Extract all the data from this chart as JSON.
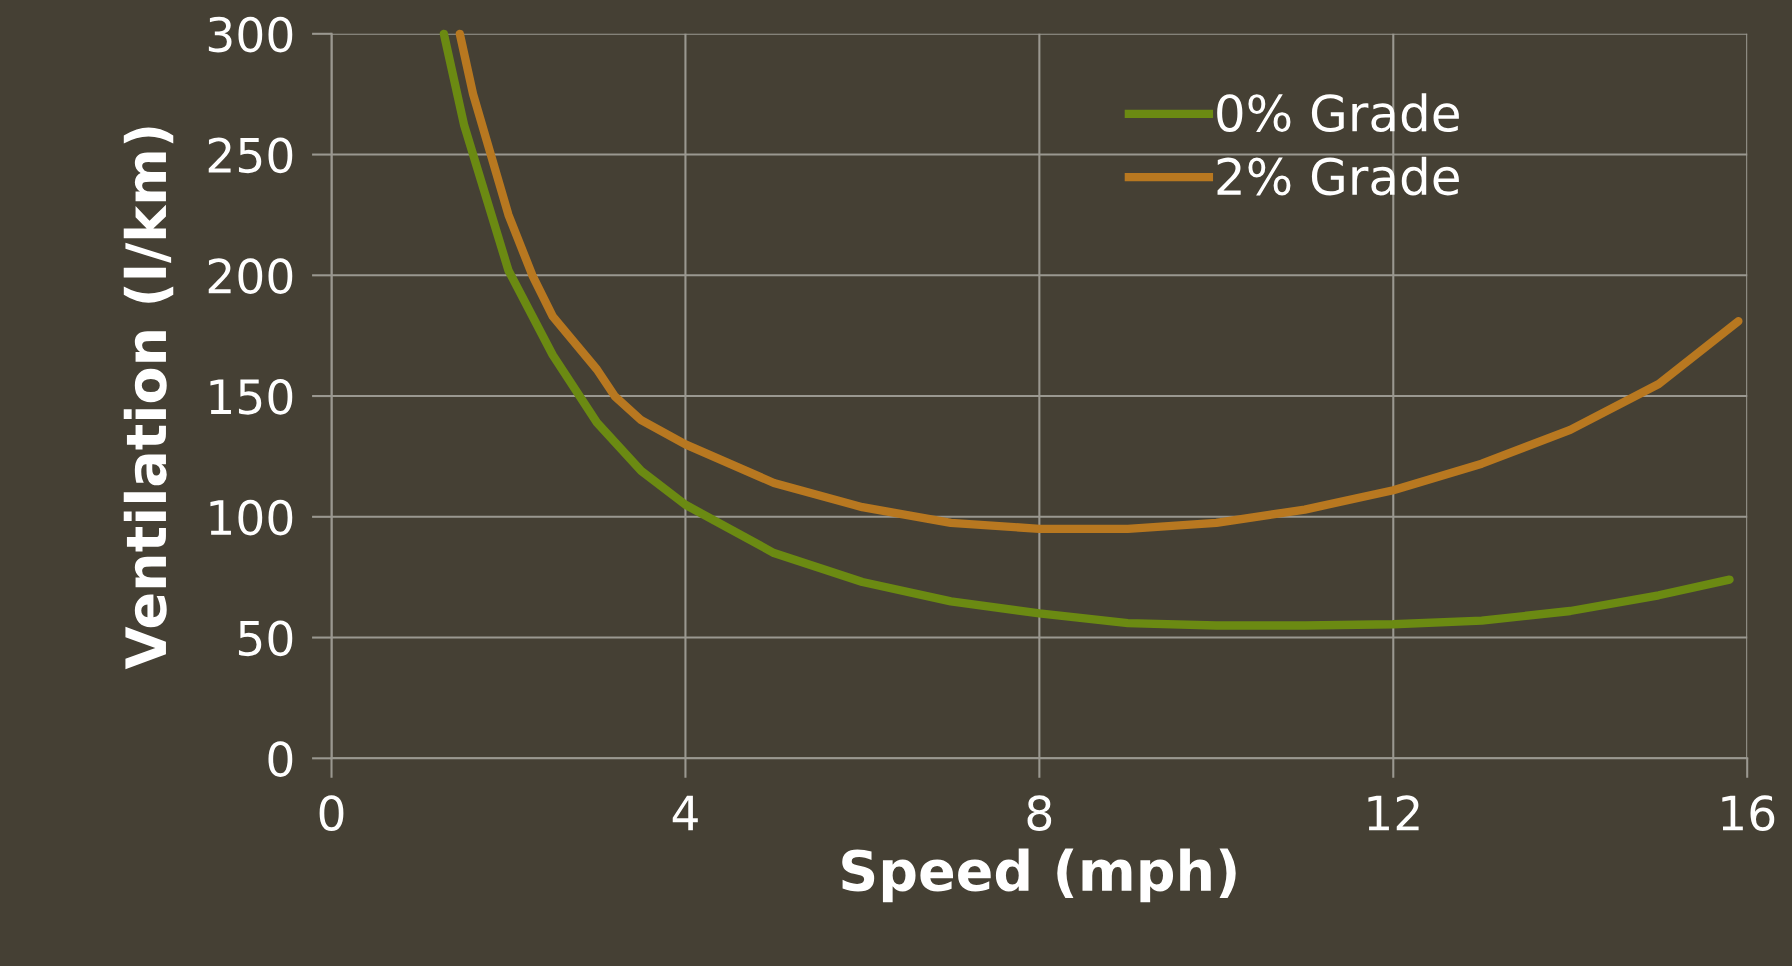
{
  "chart_data": {
    "type": "line",
    "xlabel": "Speed (mph)",
    "ylabel": "Ventilation (l/km)",
    "xlim": [
      0,
      16
    ],
    "xticks": [
      0,
      4,
      8,
      12,
      16
    ],
    "ylim": [
      0,
      300
    ],
    "yticks": [
      0,
      50,
      100,
      150,
      200,
      250,
      300
    ],
    "grid": true,
    "legend": "top right",
    "marker": "none",
    "line_style": "solid",
    "series": [
      {
        "name": "0% Grade",
        "color": "#6b8a12",
        "x": [
          1.27,
          1.5,
          2,
          2.5,
          3,
          3.5,
          4,
          5,
          6,
          7,
          8,
          9,
          10,
          11,
          12,
          13,
          14,
          15,
          15.8
        ],
        "values": [
          300,
          262,
          202,
          167,
          139,
          119,
          105,
          85,
          73,
          65,
          60,
          56,
          55,
          55,
          55.5,
          57,
          61,
          67.5,
          74
        ]
      },
      {
        "name": "2% Grade",
        "color": "#b87820",
        "x": [
          1.45,
          1.6,
          2,
          2.27,
          2.5,
          3,
          3.2,
          3.5,
          4,
          5,
          6,
          7,
          8,
          9,
          10,
          11,
          12,
          13,
          14,
          15,
          15.9
        ],
        "values": [
          300,
          275,
          225,
          200,
          183,
          161,
          150,
          140,
          130,
          114,
          104,
          97.5,
          95,
          95,
          97.5,
          103,
          111,
          122,
          136,
          155,
          181
        ]
      }
    ]
  }
}
